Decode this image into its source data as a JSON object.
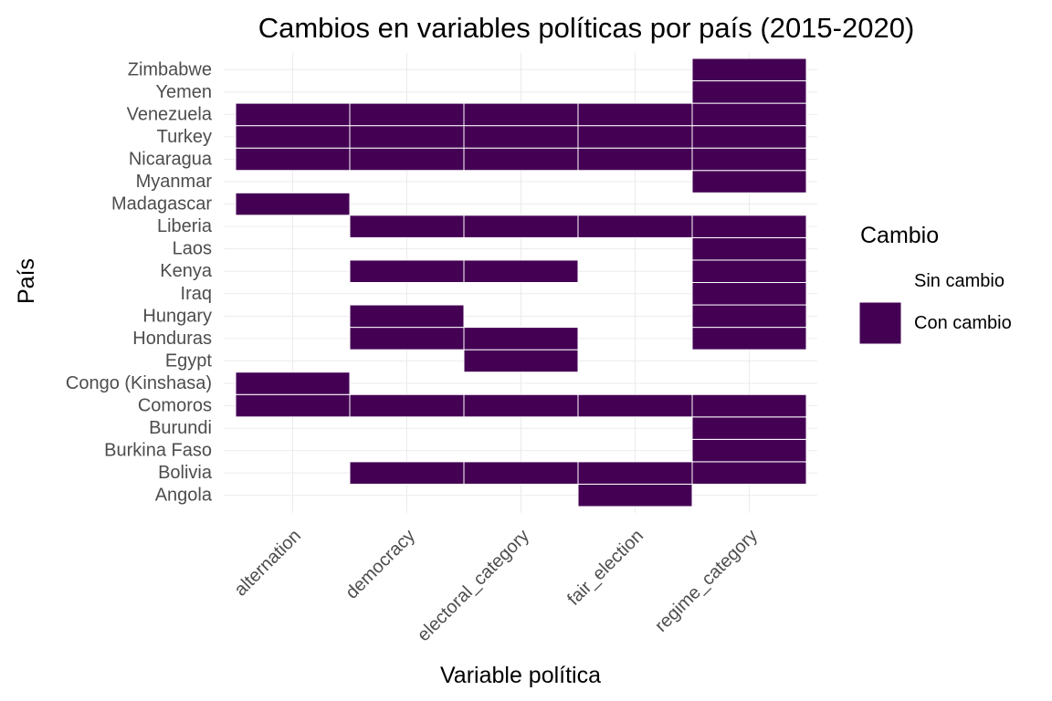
{
  "chart_data": {
    "type": "heatmap",
    "title": "Cambios en variables políticas por país (2015-2020)",
    "xlabel": "Variable política",
    "ylabel": "País",
    "x_categories": [
      "alternation",
      "democracy",
      "electoral_category",
      "fair_election",
      "regime_category"
    ],
    "y_categories": [
      "Angola",
      "Bolivia",
      "Burkina Faso",
      "Burundi",
      "Comoros",
      "Congo (Kinshasa)",
      "Egypt",
      "Honduras",
      "Hungary",
      "Iraq",
      "Kenya",
      "Laos",
      "Liberia",
      "Madagascar",
      "Myanmar",
      "Nicaragua",
      "Turkey",
      "Venezuela",
      "Yemen",
      "Zimbabwe"
    ],
    "values": {
      "Angola": [
        0,
        0,
        0,
        1,
        0
      ],
      "Bolivia": [
        0,
        1,
        1,
        1,
        1
      ],
      "Burkina Faso": [
        0,
        0,
        0,
        0,
        1
      ],
      "Burundi": [
        0,
        0,
        0,
        0,
        1
      ],
      "Comoros": [
        1,
        1,
        1,
        1,
        1
      ],
      "Congo (Kinshasa)": [
        1,
        0,
        0,
        0,
        0
      ],
      "Egypt": [
        0,
        0,
        1,
        0,
        0
      ],
      "Honduras": [
        0,
        1,
        1,
        0,
        1
      ],
      "Hungary": [
        0,
        1,
        0,
        0,
        1
      ],
      "Iraq": [
        0,
        0,
        0,
        0,
        1
      ],
      "Kenya": [
        0,
        1,
        1,
        0,
        1
      ],
      "Laos": [
        0,
        0,
        0,
        0,
        1
      ],
      "Liberia": [
        0,
        1,
        1,
        1,
        1
      ],
      "Madagascar": [
        1,
        0,
        0,
        0,
        0
      ],
      "Myanmar": [
        0,
        0,
        0,
        0,
        1
      ],
      "Nicaragua": [
        1,
        1,
        1,
        1,
        1
      ],
      "Turkey": [
        1,
        1,
        1,
        1,
        1
      ],
      "Venezuela": [
        1,
        1,
        1,
        1,
        1
      ],
      "Yemen": [
        0,
        0,
        0,
        0,
        1
      ],
      "Zimbabwe": [
        0,
        0,
        0,
        0,
        1
      ]
    },
    "legend": {
      "title": "Cambio",
      "position": "right",
      "entries": [
        {
          "label": "Sin cambio",
          "value": 0,
          "color": "#ffffff"
        },
        {
          "label": "Con cambio",
          "value": 1,
          "color": "#440154"
        }
      ]
    },
    "grid": true,
    "x_tick_rotation_deg": 45
  }
}
